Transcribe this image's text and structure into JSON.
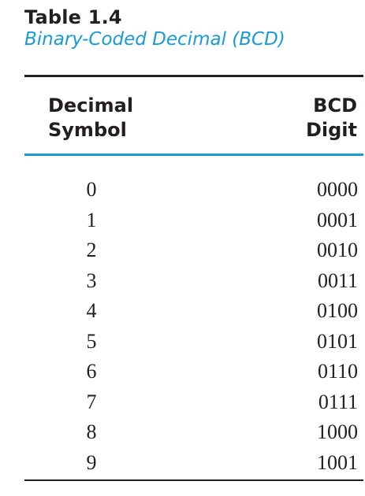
{
  "table": {
    "label": "Table 1.4",
    "caption": "Binary-Coded Decimal (BCD)",
    "headers": {
      "decimal_line1": "Decimal",
      "decimal_line2": "Symbol",
      "bcd_line1": "BCD",
      "bcd_line2": "Digit"
    },
    "rows": [
      {
        "decimal": "0",
        "bcd": "0000"
      },
      {
        "decimal": "1",
        "bcd": "0001"
      },
      {
        "decimal": "2",
        "bcd": "0010"
      },
      {
        "decimal": "3",
        "bcd": "0011"
      },
      {
        "decimal": "4",
        "bcd": "0100"
      },
      {
        "decimal": "5",
        "bcd": "0101"
      },
      {
        "decimal": "6",
        "bcd": "0110"
      },
      {
        "decimal": "7",
        "bcd": "0111"
      },
      {
        "decimal": "8",
        "bcd": "1000"
      },
      {
        "decimal": "9",
        "bcd": "1001"
      }
    ]
  },
  "colors": {
    "text": "#231f20",
    "accent": "#1a9ad6"
  }
}
